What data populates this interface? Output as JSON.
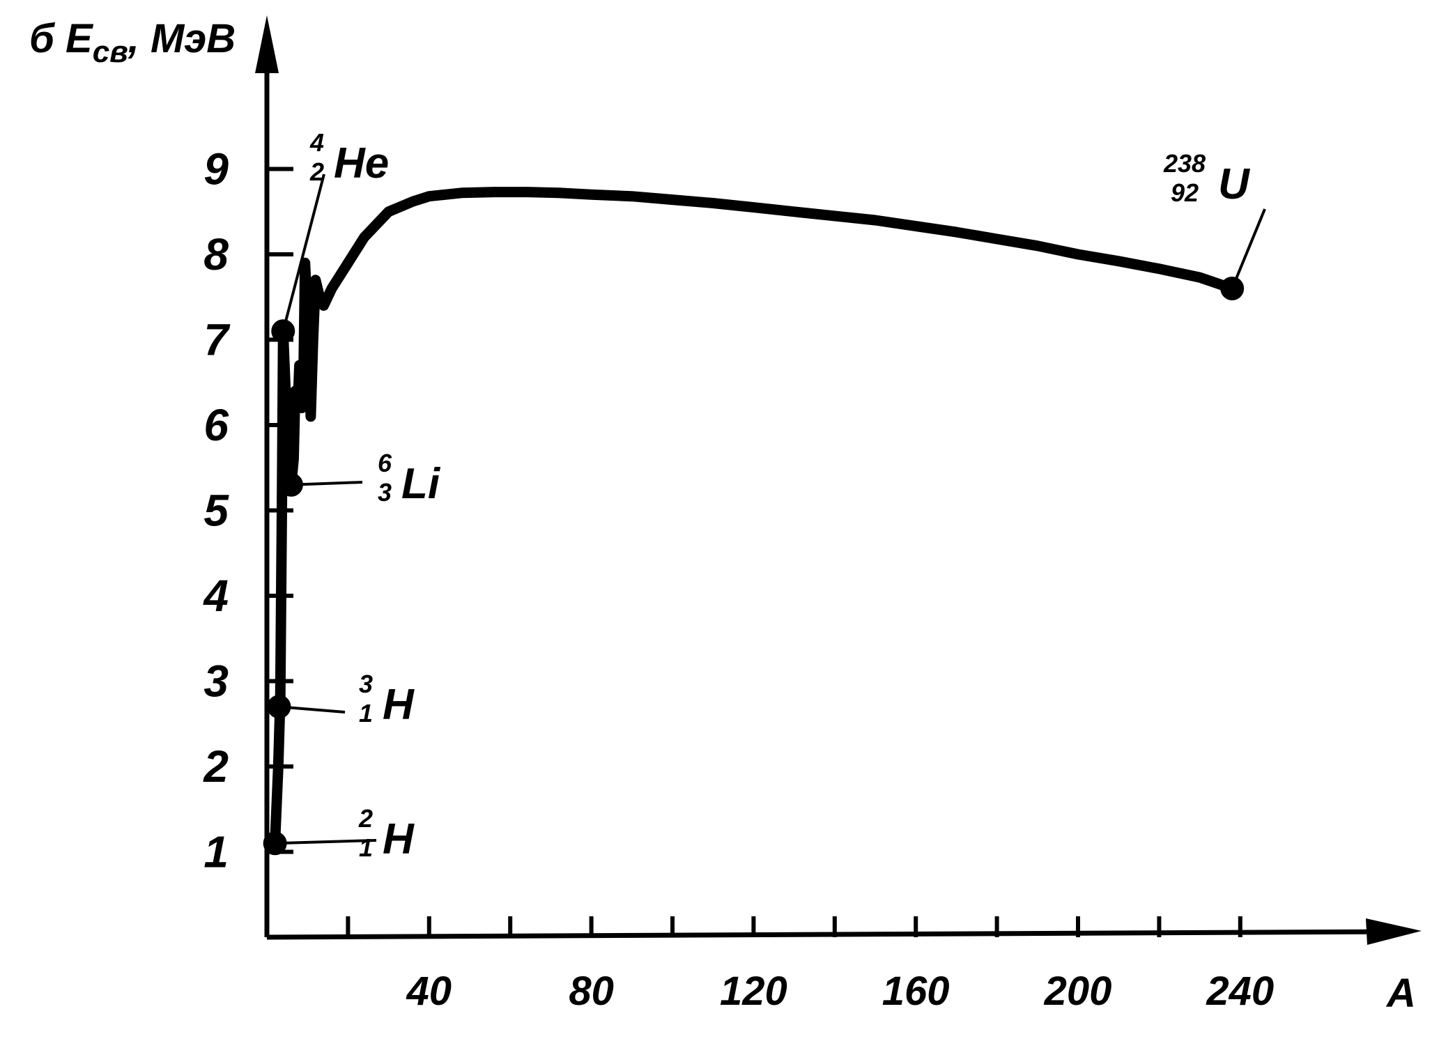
{
  "chart_data": {
    "type": "line",
    "ylabel_main": "б E",
    "ylabel_sub": "св",
    "ylabel_unit": ", МэВ",
    "xlabel": "A",
    "xlim": [
      0,
      252
    ],
    "ylim": [
      0,
      10
    ],
    "x_ticks": [
      40,
      80,
      120,
      160,
      200,
      240
    ],
    "x_minor_ticks": [
      20,
      40,
      60,
      80,
      100,
      120,
      140,
      160,
      180,
      200,
      220,
      240
    ],
    "y_ticks": [
      1,
      2,
      3,
      4,
      5,
      6,
      7,
      8,
      9
    ],
    "grid": false,
    "series": [
      {
        "x": [
          2,
          2.8,
          3.3,
          3.7,
          4,
          4.6,
          5.2,
          5.7,
          6,
          6.6,
          7,
          7.6,
          8,
          8.6,
          9,
          9.4,
          10,
          10.8,
          11.4,
          12,
          13,
          14,
          16,
          20,
          24,
          30,
          36,
          40,
          48,
          56,
          64,
          72,
          80,
          90,
          100,
          110,
          120,
          130,
          140,
          150,
          160,
          170,
          180,
          190,
          200,
          210,
          220,
          230,
          238
        ],
        "y": [
          1.1,
          2.0,
          2.8,
          5.0,
          7.1,
          6.4,
          5.6,
          5.5,
          5.3,
          5.6,
          6.4,
          6.2,
          6.7,
          6.2,
          6.5,
          7.9,
          7.3,
          6.1,
          7.0,
          7.7,
          7.5,
          7.4,
          7.6,
          7.9,
          8.2,
          8.5,
          8.62,
          8.68,
          8.72,
          8.73,
          8.73,
          8.72,
          8.7,
          8.68,
          8.64,
          8.6,
          8.55,
          8.5,
          8.45,
          8.4,
          8.33,
          8.26,
          8.18,
          8.1,
          8.0,
          7.92,
          7.83,
          7.73,
          7.6
        ]
      }
    ],
    "points": [
      {
        "symbol": "H",
        "mass": "2",
        "charge": "1",
        "x": 2,
        "y": 1.1
      },
      {
        "symbol": "H",
        "mass": "3",
        "charge": "1",
        "x": 3,
        "y": 2.7
      },
      {
        "symbol": "He",
        "mass": "4",
        "charge": "2",
        "x": 4,
        "y": 7.1
      },
      {
        "symbol": "Li",
        "mass": "6",
        "charge": "3",
        "x": 6,
        "y": 5.3
      },
      {
        "symbol": "U",
        "mass": "238",
        "charge": "92",
        "x": 238,
        "y": 7.6
      }
    ]
  }
}
